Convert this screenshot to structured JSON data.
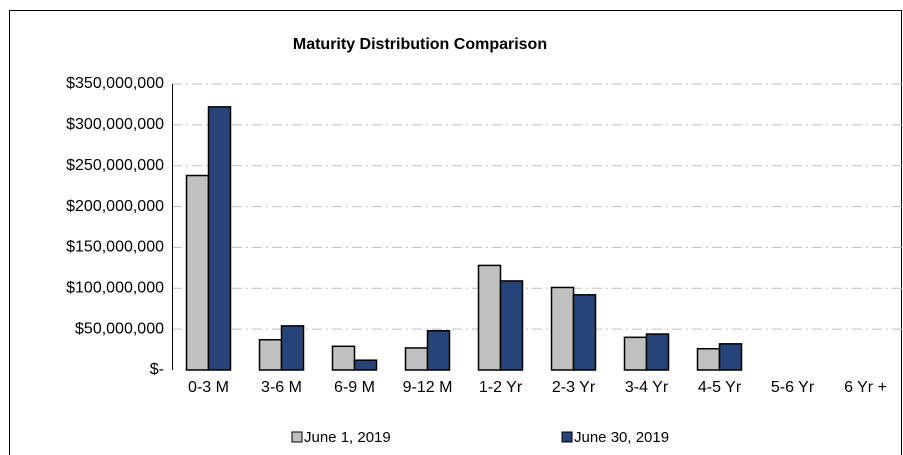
{
  "chart_data": {
    "type": "bar",
    "title": "Maturity Distribution Comparison",
    "categories": [
      "0-3 M",
      "3-6 M",
      "6-9 M",
      "9-12 M",
      "1-2 Yr",
      "2-3 Yr",
      "3-4 Yr",
      "4-5 Yr",
      "5-6 Yr",
      "6 Yr +"
    ],
    "series": [
      {
        "name": "June 1, 2019",
        "color": "#c0c0c0",
        "values": [
          238000000,
          37000000,
          29000000,
          27000000,
          128000000,
          101000000,
          40000000,
          26000000,
          0,
          0
        ]
      },
      {
        "name": "June 30, 2019",
        "color": "#264478",
        "values": [
          322000000,
          54000000,
          12000000,
          48000000,
          109000000,
          92000000,
          44000000,
          32000000,
          0,
          0
        ]
      }
    ],
    "ylim": [
      0,
      350000000
    ],
    "yticks": [
      {
        "value": 0,
        "label": "$-"
      },
      {
        "value": 50000000,
        "label": "$50,000,000"
      },
      {
        "value": 100000000,
        "label": "$100,000,000"
      },
      {
        "value": 150000000,
        "label": "$150,000,000"
      },
      {
        "value": 200000000,
        "label": "$200,000,000"
      },
      {
        "value": 250000000,
        "label": "$250,000,000"
      },
      {
        "value": 300000000,
        "label": "$300,000,000"
      },
      {
        "value": 350000000,
        "label": "$350,000,000"
      }
    ],
    "grid": true,
    "legend": "bottom"
  }
}
